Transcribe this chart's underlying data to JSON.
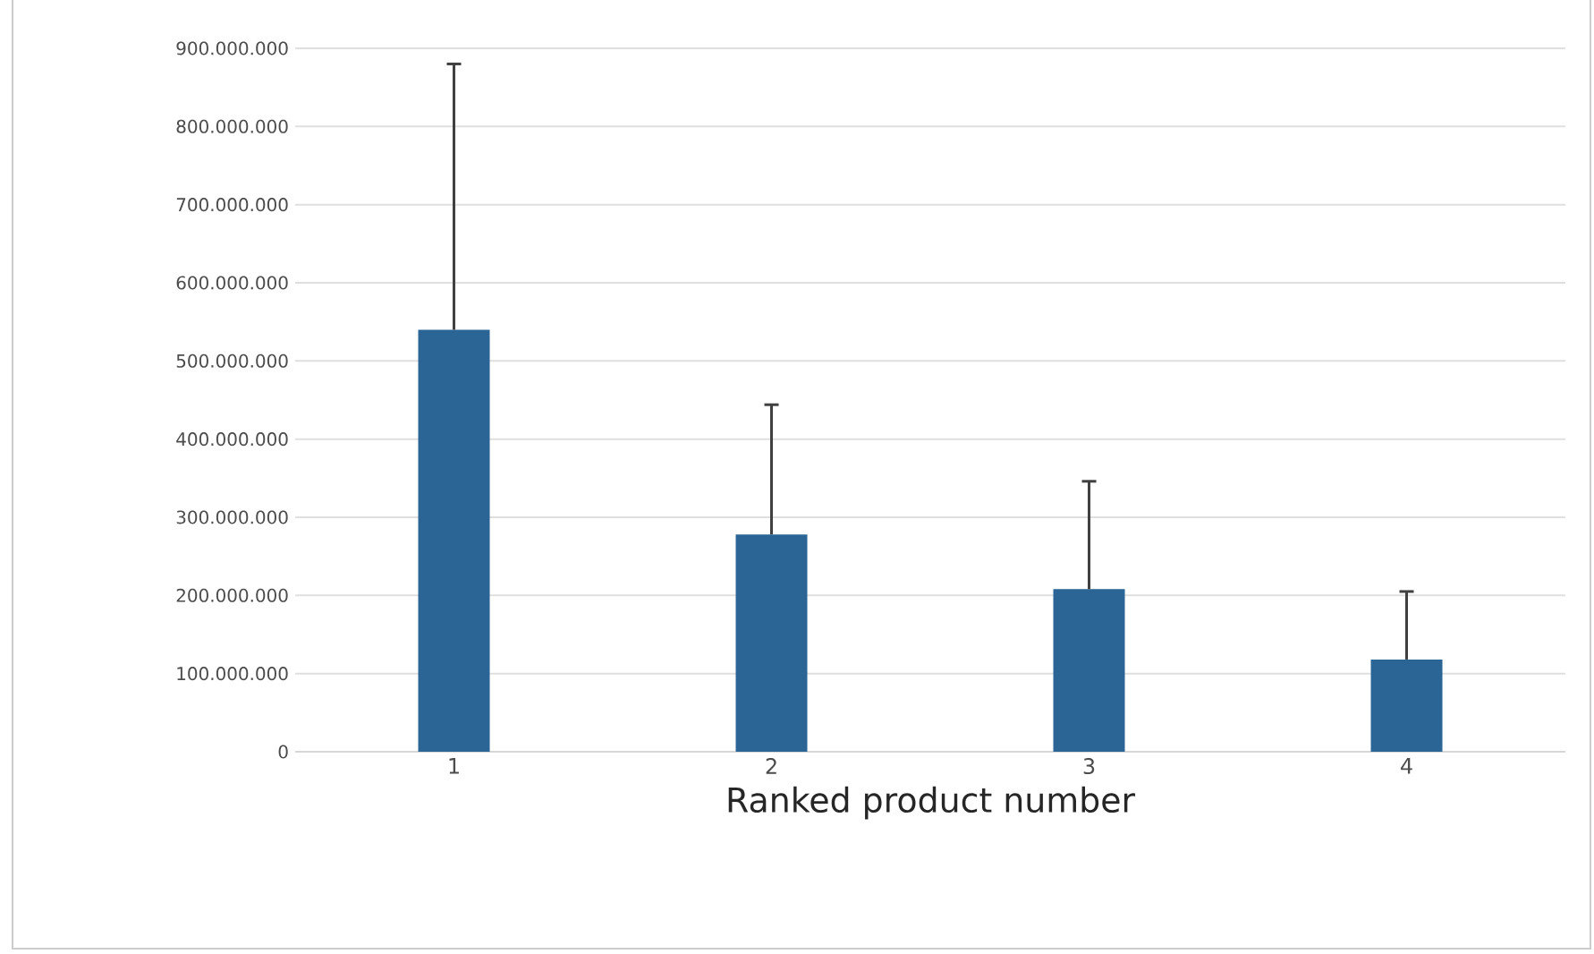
{
  "chart_data": {
    "type": "bar",
    "xlabel": "Ranked product number",
    "categories": [
      "1",
      "2",
      "3",
      "4"
    ],
    "values": [
      540000000,
      278000000,
      208000000,
      118000000
    ],
    "errors": [
      [
        540000000,
        880000000
      ],
      [
        278000000,
        444000000
      ],
      [
        208000000,
        346000000
      ],
      [
        118000000,
        205000000
      ]
    ],
    "color": "#2a6595",
    "grid": "y",
    "ylim": [
      0,
      900000000
    ],
    "yticks": [
      {
        "value": 0,
        "label": "0"
      },
      {
        "value": 100000000,
        "label": "100.000.000"
      },
      {
        "value": 200000000,
        "label": "200.000.000"
      },
      {
        "value": 300000000,
        "label": "300.000.000"
      },
      {
        "value": 400000000,
        "label": "400.000.000"
      },
      {
        "value": 500000000,
        "label": "500.000.000"
      },
      {
        "value": 600000000,
        "label": "600.000.000"
      },
      {
        "value": 700000000,
        "label": "700.000.000"
      },
      {
        "value": 800000000,
        "label": "800.000.000"
      },
      {
        "value": 900000000,
        "label": "900.000.000"
      }
    ]
  }
}
